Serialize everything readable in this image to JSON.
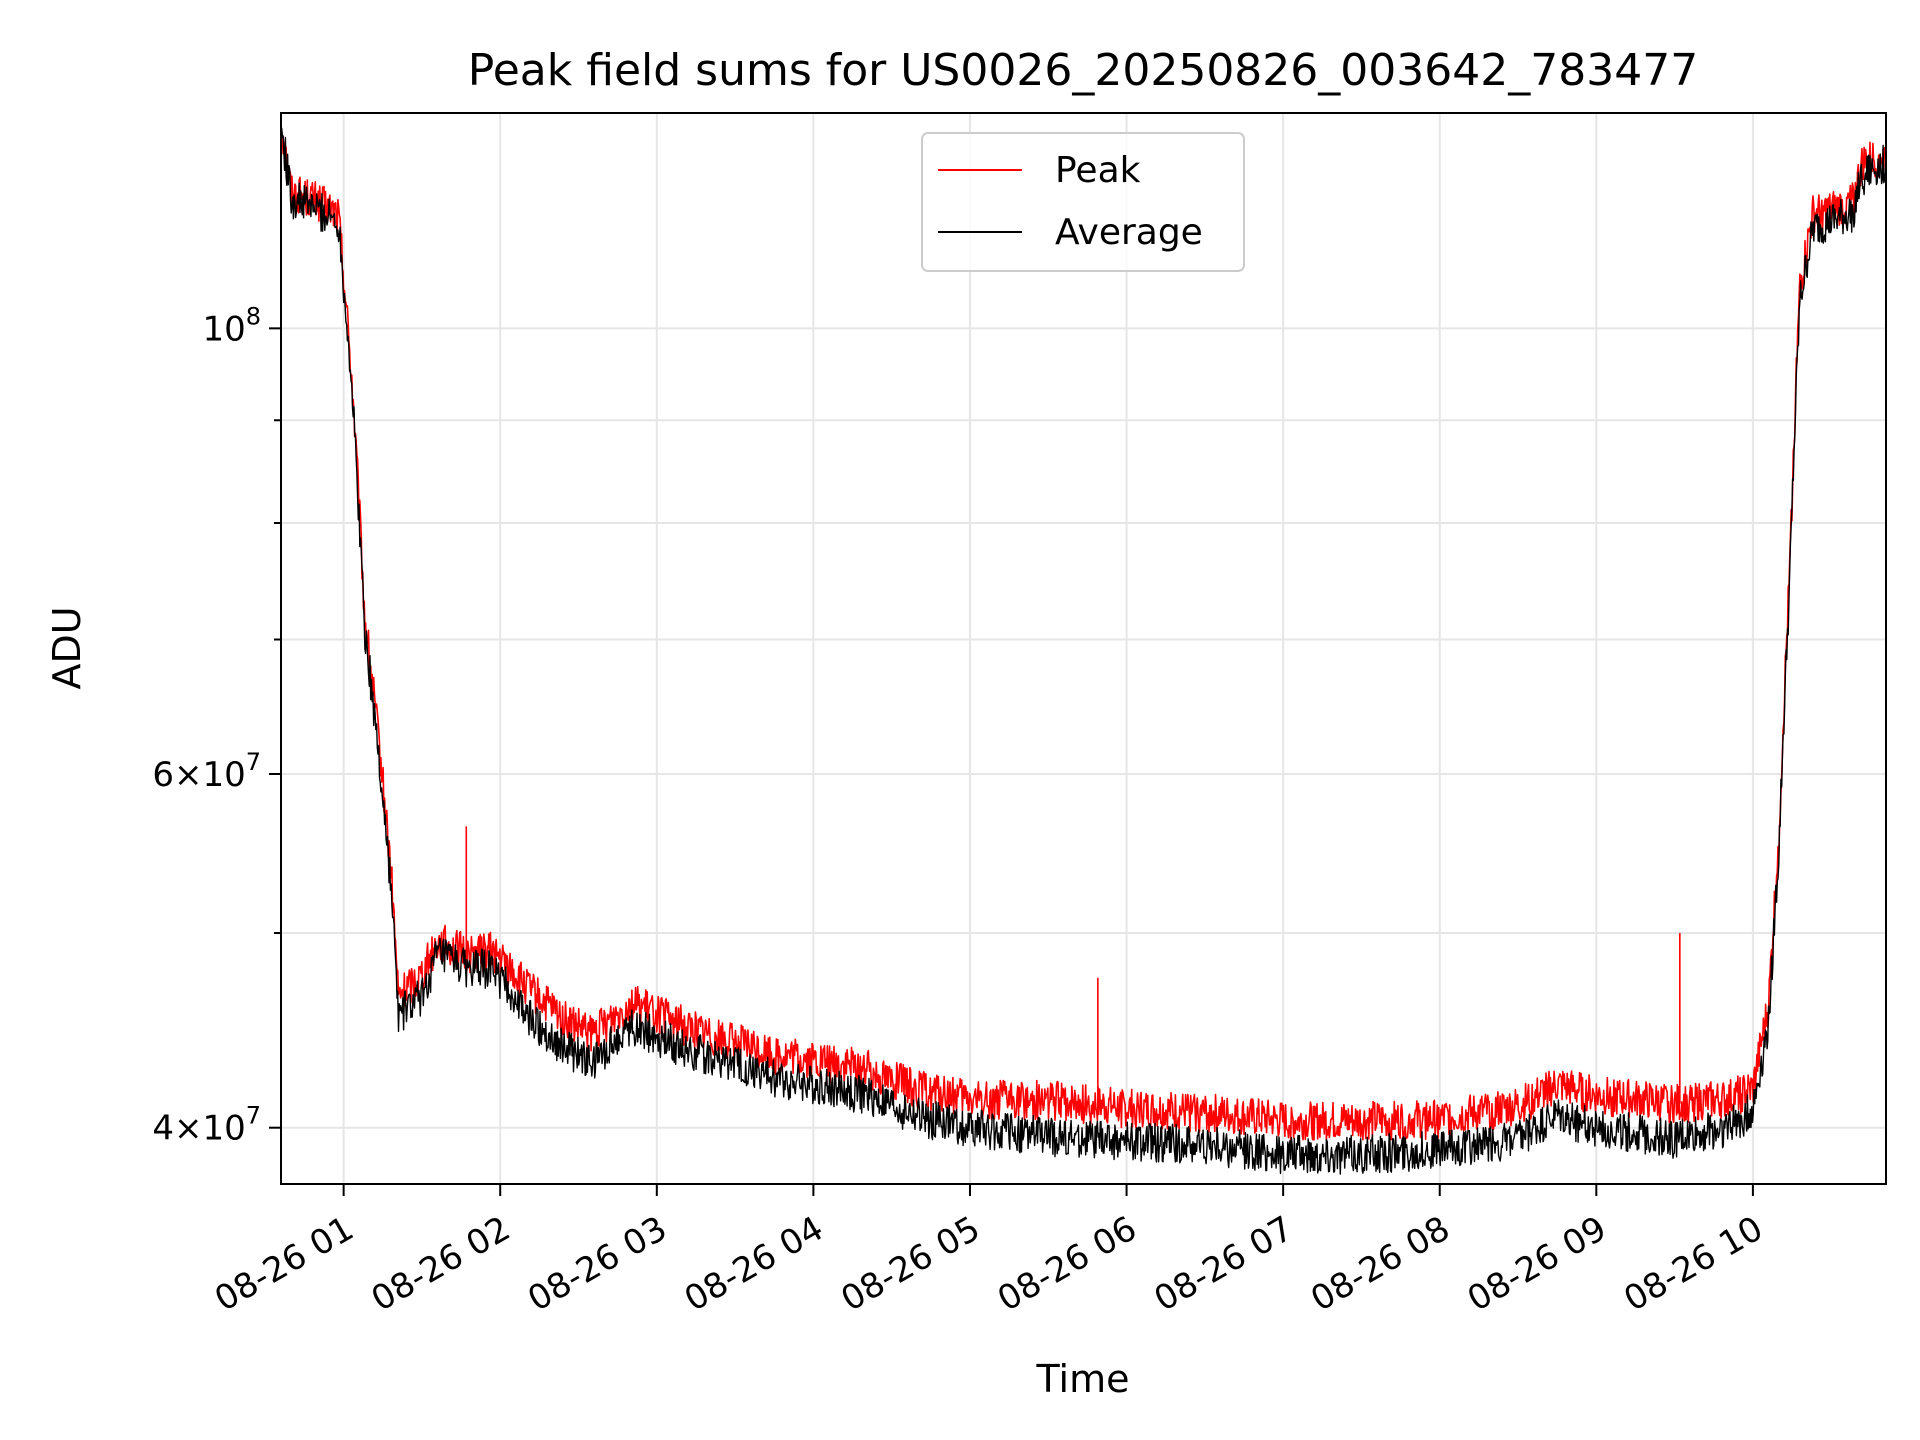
{
  "chart_data": {
    "type": "line",
    "title": "Peak field sums for US0026_20250826_003642_783477",
    "xlabel": "Time",
    "ylabel": "ADU",
    "yscale": "log",
    "xlim": [
      "2025-08-26 00:36",
      "2025-08-26 10:51"
    ],
    "ylim": [
      37500000,
      128000000
    ],
    "grid": true,
    "legend_position": "upper center",
    "x_ticks": [
      "08-26 01",
      "08-26 02",
      "08-26 03",
      "08-26 04",
      "08-26 05",
      "08-26 06",
      "08-26 07",
      "08-26 08",
      "08-26 09",
      "08-26 10"
    ],
    "y_ticks": [
      {
        "value": 40000000,
        "mantissa": "4",
        "exponent": "7"
      },
      {
        "value": 60000000,
        "mantissa": "6",
        "exponent": "7"
      },
      {
        "value": 100000000,
        "mantissa": "",
        "exponent": "8"
      }
    ],
    "y_minor_ticks": [
      50000000,
      70000000,
      80000000,
      90000000
    ],
    "series": [
      {
        "name": "Peak",
        "color": "#ff0000",
        "x": [
          "2025-08-26 00:36",
          "2025-08-26 00:40",
          "2025-08-26 00:48",
          "2025-08-26 00:58",
          "2025-08-26 01:03",
          "2025-08-26 01:08",
          "2025-08-26 01:13",
          "2025-08-26 01:18",
          "2025-08-26 01:21",
          "2025-08-26 01:30",
          "2025-08-26 01:36",
          "2025-08-26 01:48",
          "2025-08-26 01:57",
          "2025-08-26 02:10",
          "2025-08-26 02:25",
          "2025-08-26 02:35",
          "2025-08-26 02:50",
          "2025-08-26 03:10",
          "2025-08-26 03:30",
          "2025-08-26 03:45",
          "2025-08-26 04:00",
          "2025-08-26 04:20",
          "2025-08-26 04:40",
          "2025-08-26 05:00",
          "2025-08-26 05:30",
          "2025-08-26 06:00",
          "2025-08-26 06:30",
          "2025-08-26 07:00",
          "2025-08-26 07:30",
          "2025-08-26 08:00",
          "2025-08-26 08:30",
          "2025-08-26 08:45",
          "2025-08-26 09:00",
          "2025-08-26 09:30",
          "2025-08-26 09:50",
          "2025-08-26 10:00",
          "2025-08-26 10:06",
          "2025-08-26 10:10",
          "2025-08-26 10:14",
          "2025-08-26 10:18",
          "2025-08-26 10:23",
          "2025-08-26 10:30",
          "2025-08-26 10:38",
          "2025-08-26 10:42",
          "2025-08-26 10:51"
        ],
        "y": [
          126500000,
          117000000,
          116000000,
          114000000,
          95000000,
          72000000,
          63000000,
          54000000,
          46500000,
          47800000,
          49500000,
          48800000,
          49000000,
          47000000,
          45200000,
          44500000,
          46200000,
          45000000,
          44100000,
          43500000,
          43200000,
          42800000,
          41800000,
          41300000,
          41300000,
          40900000,
          40700000,
          40300000,
          40300000,
          40400000,
          41000000,
          42000000,
          41500000,
          41100000,
          41300000,
          41800000,
          46000000,
          56000000,
          75000000,
          105000000,
          114000000,
          114500000,
          115500000,
          121000000,
          122000000
        ]
      },
      {
        "name": "Average",
        "color": "#000000",
        "x": [
          "2025-08-26 00:36",
          "2025-08-26 00:40",
          "2025-08-26 00:48",
          "2025-08-26 00:58",
          "2025-08-26 01:03",
          "2025-08-26 01:08",
          "2025-08-26 01:13",
          "2025-08-26 01:18",
          "2025-08-26 01:21",
          "2025-08-26 01:30",
          "2025-08-26 01:36",
          "2025-08-26 01:48",
          "2025-08-26 01:57",
          "2025-08-26 02:10",
          "2025-08-26 02:25",
          "2025-08-26 02:35",
          "2025-08-26 02:50",
          "2025-08-26 03:10",
          "2025-08-26 03:30",
          "2025-08-26 03:45",
          "2025-08-26 04:00",
          "2025-08-26 04:20",
          "2025-08-26 04:40",
          "2025-08-26 05:00",
          "2025-08-26 05:30",
          "2025-08-26 06:00",
          "2025-08-26 06:30",
          "2025-08-26 07:00",
          "2025-08-26 07:30",
          "2025-08-26 08:00",
          "2025-08-26 08:30",
          "2025-08-26 08:45",
          "2025-08-26 09:00",
          "2025-08-26 09:30",
          "2025-08-26 09:50",
          "2025-08-26 10:00",
          "2025-08-26 10:06",
          "2025-08-26 10:10",
          "2025-08-26 10:14",
          "2025-08-26 10:18",
          "2025-08-26 10:23",
          "2025-08-26 10:30",
          "2025-08-26 10:38",
          "2025-08-26 10:42",
          "2025-08-26 10:51"
        ],
        "y": [
          126000000,
          116000000,
          115000000,
          113000000,
          94000000,
          71000000,
          62000000,
          53000000,
          45500000,
          46500000,
          48800000,
          48000000,
          48000000,
          45500000,
          43800000,
          43000000,
          45000000,
          43800000,
          43000000,
          42300000,
          42000000,
          41500000,
          40500000,
          40000000,
          39600000,
          39400000,
          39200000,
          38800000,
          38800000,
          39000000,
          39400000,
          40500000,
          40000000,
          39500000,
          40000000,
          40800000,
          45000000,
          55000000,
          74000000,
          103000000,
          112000000,
          113000000,
          114000000,
          119000000,
          121000000
        ]
      }
    ],
    "spikes": [
      {
        "series": "Peak",
        "x": "2025-08-26 01:47",
        "y": 56500000
      },
      {
        "series": "Peak",
        "x": "2025-08-26 05:49",
        "y": 47500000
      },
      {
        "series": "Peak",
        "x": "2025-08-26 09:32",
        "y": 50000000
      }
    ]
  }
}
